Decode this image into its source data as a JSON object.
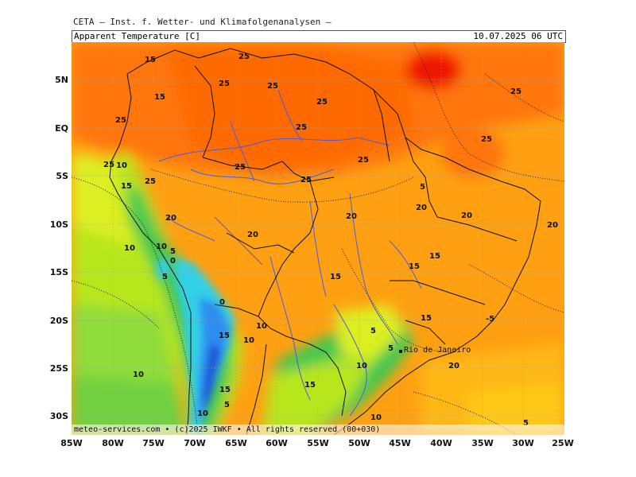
{
  "header": {
    "institute": "CETA – Inst. f. Wetter- und Klimafolgenanalysen –",
    "parameter": "Apparent Temperature [C]",
    "datetime": "10.07.2025 06 UTC"
  },
  "footer": {
    "copyright": "meteo-services.com • (c)2025 IWKF • All rights reserved (00+030)"
  },
  "axes": {
    "latitude": [
      "5N",
      "EQ",
      "5S",
      "10S",
      "15S",
      "20S",
      "25S",
      "30S"
    ],
    "longitude": [
      "85W",
      "80W",
      "75W",
      "70W",
      "65W",
      "60W",
      "55W",
      "50W",
      "45W",
      "40W",
      "35W",
      "30W",
      "25W"
    ]
  },
  "labels": {
    "city": "Rio de Janeiro",
    "contours": [
      "15",
      "25",
      "25",
      "25",
      "25",
      "25",
      "15",
      "25",
      "25",
      "25",
      "25",
      "25",
      "25",
      "10",
      "25",
      "15",
      "25",
      "20",
      "20",
      "20",
      "20",
      "20",
      "10",
      "10",
      "5",
      "0",
      "5",
      "5",
      "15",
      "15",
      "15",
      "0",
      "15",
      "20",
      "-5",
      "10",
      "15",
      "10",
      "5",
      "5",
      "10",
      "20",
      "10",
      "15",
      "15",
      "5",
      "10",
      "5"
    ]
  },
  "colors": {
    "plus5": "#b8e61e",
    "plus10": "#ddef20",
    "plus15": "#ffd21a",
    "plus20": "#ffa012",
    "plus25": "#ff7608",
    "plus30": "#f01200",
    "zero": "#30d0e8",
    "minus5": "#2f8df0",
    "minus10": "#1f4fd8",
    "green": "#40c850",
    "ocean_green": "#8fdc3a",
    "rivers": "#4a5be0",
    "coast": "#111111",
    "grid": "#a0a0a0"
  }
}
